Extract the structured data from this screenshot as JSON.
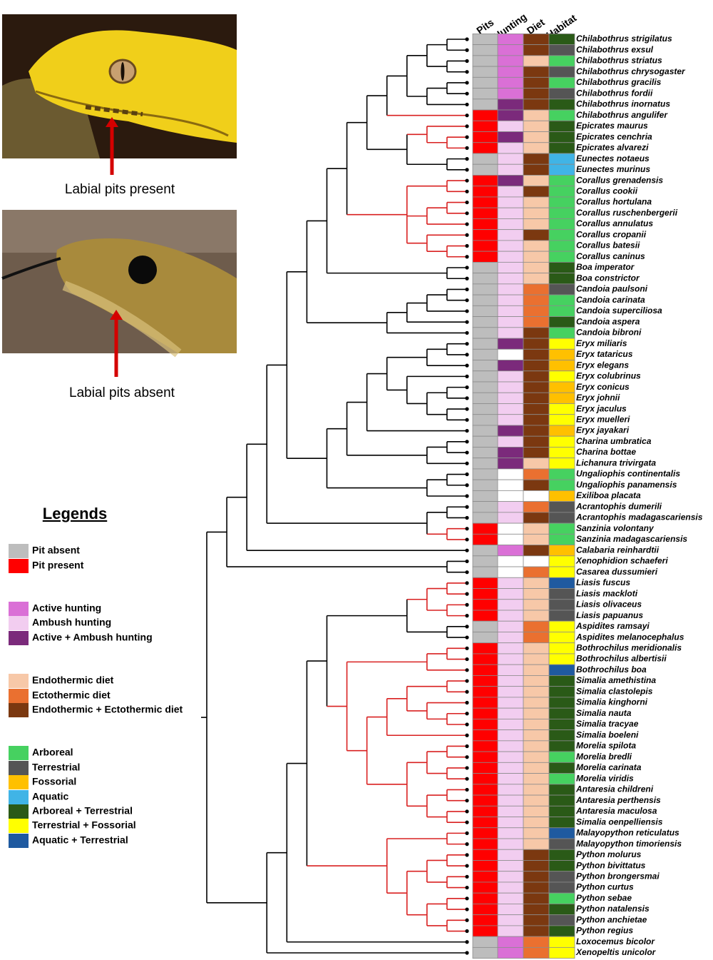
{
  "photos": [
    {
      "caption": "Labial pits present"
    },
    {
      "caption": "Labial pits absent"
    }
  ],
  "legend": {
    "title": "Legends",
    "groups": [
      {
        "items": [
          {
            "label": "Pit absent",
            "color": "#bdbdbd"
          },
          {
            "label": "Pit present",
            "color": "#ff0000"
          }
        ]
      },
      {
        "items": [
          {
            "label": "Active hunting",
            "color": "#da70d6"
          },
          {
            "label": "Ambush hunting",
            "color": "#f2cdf0"
          },
          {
            "label": "Active + Ambush hunting",
            "color": "#7b2a7b"
          }
        ]
      },
      {
        "items": [
          {
            "label": "Endothermic diet",
            "color": "#f7c8a8"
          },
          {
            "label": "Ectothermic diet",
            "color": "#ea7030"
          },
          {
            "label": "Endothermic + Ectothermic diet",
            "color": "#7b3810"
          }
        ]
      },
      {
        "items": [
          {
            "label": "Arboreal",
            "color": "#46d160"
          },
          {
            "label": "Terrestrial",
            "color": "#555555"
          },
          {
            "label": "Fossorial",
            "color": "#ffc000"
          },
          {
            "label": "Aquatic",
            "color": "#40b4e6"
          },
          {
            "label": "Arboreal + Terrestrial",
            "color": "#2a5a17"
          },
          {
            "label": "Terrestrial + Fossorial",
            "color": "#ffff00"
          },
          {
            "label": "Aquatic + Terrestrial",
            "color": "#1f5aa0"
          }
        ]
      }
    ]
  },
  "columns": [
    "Pits",
    "Hunting",
    "Diet",
    "Habitat"
  ],
  "species": [
    [
      "Chilabothrus strigilatus",
      0,
      0,
      2,
      4
    ],
    [
      "Chilabothrus exsul",
      0,
      0,
      2,
      1
    ],
    [
      "Chilabothrus striatus",
      0,
      0,
      0,
      0
    ],
    [
      "Chilabothrus chrysogaster",
      0,
      0,
      2,
      1
    ],
    [
      "Chilabothrus gracilis",
      0,
      0,
      2,
      0
    ],
    [
      "Chilabothrus fordii",
      0,
      0,
      2,
      1
    ],
    [
      "Chilabothrus inornatus",
      0,
      2,
      2,
      4
    ],
    [
      "Chilabothrus angulifer",
      1,
      2,
      0,
      0
    ],
    [
      "Epicrates maurus",
      1,
      1,
      0,
      4
    ],
    [
      "Epicrates cenchria",
      1,
      2,
      0,
      4
    ],
    [
      "Epicrates alvarezi",
      1,
      1,
      0,
      4
    ],
    [
      "Eunectes notaeus",
      0,
      1,
      2,
      3
    ],
    [
      "Eunectes murinus",
      0,
      1,
      2,
      3
    ],
    [
      "Corallus grenadensis",
      1,
      2,
      0,
      0
    ],
    [
      "Corallus cookii",
      1,
      1,
      2,
      0
    ],
    [
      "Corallus hortulana",
      1,
      1,
      0,
      0
    ],
    [
      "Corallus ruschenbergerii",
      1,
      1,
      0,
      0
    ],
    [
      "Corallus annulatus",
      1,
      1,
      0,
      0
    ],
    [
      "Corallus cropanii",
      1,
      1,
      2,
      0
    ],
    [
      "Corallus batesii",
      1,
      1,
      0,
      0
    ],
    [
      "Corallus caninus",
      1,
      1,
      0,
      0
    ],
    [
      "Boa imperator",
      0,
      1,
      0,
      4
    ],
    [
      "Boa constrictor",
      0,
      1,
      0,
      4
    ],
    [
      "Candoia paulsoni",
      0,
      1,
      1,
      1
    ],
    [
      "Candoia carinata",
      0,
      1,
      1,
      0
    ],
    [
      "Candoia superciliosa",
      0,
      1,
      1,
      0
    ],
    [
      "Candoia aspera",
      0,
      1,
      1,
      4
    ],
    [
      "Candoia bibroni",
      0,
      1,
      2,
      0
    ],
    [
      "Eryx miliaris",
      0,
      2,
      2,
      5
    ],
    [
      "Eryx tataricus",
      0,
      null,
      2,
      2
    ],
    [
      "Eryx elegans",
      0,
      2,
      2,
      2
    ],
    [
      "Eryx colubrinus",
      0,
      1,
      2,
      5
    ],
    [
      "Eryx conicus",
      0,
      1,
      2,
      2
    ],
    [
      "Eryx johnii",
      0,
      1,
      2,
      2
    ],
    [
      "Eryx jaculus",
      0,
      1,
      2,
      5
    ],
    [
      "Eryx muelleri",
      0,
      1,
      2,
      5
    ],
    [
      "Eryx jayakari",
      0,
      2,
      2,
      2
    ],
    [
      "Charina umbratica",
      0,
      1,
      2,
      5
    ],
    [
      "Charina bottae",
      0,
      2,
      2,
      5
    ],
    [
      "Lichanura trivirgata",
      0,
      2,
      0,
      5
    ],
    [
      "Ungaliophis continentalis",
      0,
      null,
      1,
      0
    ],
    [
      "Ungaliophis panamensis",
      0,
      null,
      2,
      0
    ],
    [
      "Exiliboa placata",
      0,
      null,
      null,
      2
    ],
    [
      "Acrantophis dumerili",
      0,
      1,
      1,
      1
    ],
    [
      "Acrantophis madagascariensis",
      0,
      1,
      2,
      1
    ],
    [
      "Sanzinia volontany",
      1,
      null,
      0,
      0
    ],
    [
      "Sanzinia madagascariensis",
      1,
      null,
      0,
      0
    ],
    [
      "Calabaria reinhardtii",
      0,
      0,
      2,
      2
    ],
    [
      "Xenophidion schaeferi",
      0,
      null,
      null,
      5
    ],
    [
      "Casarea dussumieri",
      0,
      null,
      1,
      5
    ],
    [
      "Liasis fuscus",
      1,
      1,
      0,
      6
    ],
    [
      "Liasis mackloti",
      1,
      1,
      0,
      1
    ],
    [
      "Liasis olivaceus",
      1,
      1,
      0,
      1
    ],
    [
      "Liasis papuanus",
      1,
      1,
      0,
      1
    ],
    [
      "Aspidites ramsayi",
      0,
      1,
      1,
      5
    ],
    [
      "Aspidites melanocephalus",
      0,
      1,
      1,
      5
    ],
    [
      "Bothrochilus meridionalis",
      1,
      1,
      0,
      5
    ],
    [
      "Bothrochilus albertisii",
      1,
      1,
      0,
      5
    ],
    [
      "Bothrochilus boa",
      1,
      1,
      0,
      6
    ],
    [
      "Simalia amethistina",
      1,
      1,
      0,
      4
    ],
    [
      "Simalia clastolepis",
      1,
      1,
      0,
      4
    ],
    [
      "Simalia kinghorni",
      1,
      1,
      0,
      4
    ],
    [
      "Simalia nauta",
      1,
      1,
      0,
      4
    ],
    [
      "Simalia tracyae",
      1,
      1,
      0,
      4
    ],
    [
      "Simalia boeleni",
      1,
      1,
      0,
      4
    ],
    [
      "Morelia spilota",
      1,
      1,
      0,
      4
    ],
    [
      "Morelia bredli",
      1,
      1,
      0,
      0
    ],
    [
      "Morelia carinata",
      1,
      1,
      0,
      4
    ],
    [
      "Morelia viridis",
      1,
      1,
      0,
      0
    ],
    [
      "Antaresia childreni",
      1,
      1,
      0,
      4
    ],
    [
      "Antaresia perthensis",
      1,
      1,
      0,
      4
    ],
    [
      "Antaresia maculosa",
      1,
      1,
      0,
      4
    ],
    [
      "Simalia oenpelliensis",
      1,
      1,
      0,
      4
    ],
    [
      "Malayopython reticulatus",
      1,
      1,
      0,
      6
    ],
    [
      "Malayopython timoriensis",
      1,
      1,
      0,
      1
    ],
    [
      "Python molurus",
      1,
      1,
      2,
      4
    ],
    [
      "Python bivittatus",
      1,
      1,
      2,
      4
    ],
    [
      "Python brongersmai",
      1,
      1,
      2,
      1
    ],
    [
      "Python curtus",
      1,
      1,
      2,
      1
    ],
    [
      "Python sebae",
      1,
      1,
      2,
      0
    ],
    [
      "Python natalensis",
      1,
      1,
      2,
      4
    ],
    [
      "Python anchietae",
      1,
      1,
      2,
      1
    ],
    [
      "Python regius",
      1,
      1,
      2,
      4
    ],
    [
      "Loxocemus bicolor",
      0,
      0,
      1,
      5
    ],
    [
      "Xenopeltis unicolor",
      0,
      0,
      1,
      5
    ]
  ]
}
